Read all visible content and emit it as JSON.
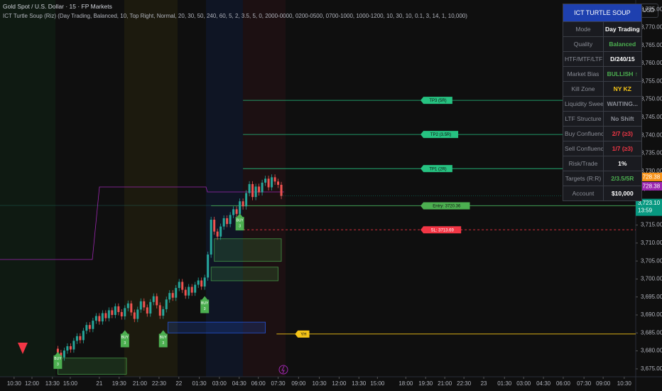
{
  "header": {
    "symbol": "Gold Spot / U.S. Dollar · 15 · FP Markets",
    "indicator": "ICT Turtle Soup (Riz) (Day Trading, Balanced, 10, Top Right, Normal, 20, 30, 50, 240, 60, 5, 2, 3.5, 5, 0, 2000-0000, 0200-0500, 0700-1000, 1000-1200, 10, 30, 10, 0.1, 3, 14, 1, 10,000)",
    "currency": "USD"
  },
  "chart_data": {
    "type": "candlestick",
    "up_color": "#26a69a",
    "down_color": "#ef5350",
    "grid": false,
    "xlim": [
      0,
      198
    ],
    "ylim": [
      3672.8,
      3777.6
    ],
    "xticks": [
      {
        "value": 3.3,
        "label": "10:30"
      },
      {
        "value": 8.9,
        "label": "12:00"
      },
      {
        "value": 15.3,
        "label": "13:30"
      },
      {
        "value": 20.9,
        "label": "15:00"
      },
      {
        "value": 30,
        "label": "21"
      },
      {
        "value": 36.2,
        "label": "19:30"
      },
      {
        "value": 42.7,
        "label": "21:00"
      },
      {
        "value": 48.7,
        "label": "22:30"
      },
      {
        "value": 54.9,
        "label": "22"
      },
      {
        "value": 61.3,
        "label": "01:30"
      },
      {
        "value": 67.6,
        "label": "03:00"
      },
      {
        "value": 73.8,
        "label": "04:30"
      },
      {
        "value": 79.8,
        "label": "06:00"
      },
      {
        "value": 86,
        "label": "07:30"
      },
      {
        "value": 92.4,
        "label": "09:00"
      },
      {
        "value": 98.9,
        "label": "10:30"
      },
      {
        "value": 105.1,
        "label": "12:00"
      },
      {
        "value": 111.3,
        "label": "13:30"
      },
      {
        "value": 117.1,
        "label": "15:00"
      },
      {
        "value": 126,
        "label": "18:00"
      },
      {
        "value": 132.2,
        "label": "19:30"
      },
      {
        "value": 138.2,
        "label": "21:00"
      },
      {
        "value": 144.2,
        "label": "22:30"
      },
      {
        "value": 150.4,
        "label": "23"
      },
      {
        "value": 156.9,
        "label": "01:30"
      },
      {
        "value": 162.9,
        "label": "03:00"
      },
      {
        "value": 169.1,
        "label": "04:30"
      },
      {
        "value": 175.3,
        "label": "06:00"
      },
      {
        "value": 181.8,
        "label": "07:30"
      },
      {
        "value": 187.8,
        "label": "09:00"
      },
      {
        "value": 194.4,
        "label": "10:30"
      }
    ],
    "yticks": [
      {
        "value": 3775,
        "label": "3,775.00"
      },
      {
        "value": 3770,
        "label": "3,770.00"
      },
      {
        "value": 3765,
        "label": "3,765.00"
      },
      {
        "value": 3760,
        "label": "3,760.00"
      },
      {
        "value": 3755,
        "label": "3,755.00"
      },
      {
        "value": 3750,
        "label": "3,750.00"
      },
      {
        "value": 3745,
        "label": "3,745.00"
      },
      {
        "value": 3740,
        "label": "3,740.00"
      },
      {
        "value": 3735,
        "label": "3,735.00"
      },
      {
        "value": 3730,
        "label": "3,730.00"
      },
      {
        "value": 3725,
        "label": "3,725.00"
      },
      {
        "value": 3720,
        "label": "3,720.00"
      },
      {
        "value": 3715,
        "label": "3,715.00"
      },
      {
        "value": 3710,
        "label": "3,710.00"
      },
      {
        "value": 3705,
        "label": "3,705.00"
      },
      {
        "value": 3700,
        "label": "3,700.00"
      },
      {
        "value": 3695,
        "label": "3,695.00"
      },
      {
        "value": 3690,
        "label": "3,690.00"
      },
      {
        "value": 3685,
        "label": "3,685.00"
      },
      {
        "value": 3680,
        "label": "3,680.00"
      },
      {
        "value": 3675,
        "label": "3,675.00"
      }
    ],
    "x": [
      17,
      18,
      19,
      20,
      21,
      22,
      23,
      24,
      25,
      26,
      27,
      28,
      29,
      30,
      31,
      32,
      33,
      34,
      35,
      36,
      37,
      38,
      39,
      40,
      41,
      42,
      43,
      44,
      45,
      46,
      47,
      48,
      49,
      50,
      51,
      52,
      53,
      54,
      55,
      56,
      57,
      58,
      59,
      60,
      61,
      62,
      63,
      64,
      65,
      66,
      67,
      68,
      69,
      70,
      71,
      72,
      73,
      74,
      75,
      76,
      77,
      78,
      79,
      80,
      81,
      82,
      83,
      84,
      85,
      86,
      87
    ],
    "open": [
      3680.6,
      3679.5,
      3678.2,
      3680.1,
      3681.3,
      3680.4,
      3682.8,
      3684.1,
      3683.0,
      3685.6,
      3687.2,
      3686.1,
      3688.4,
      3689.7,
      3688.2,
      3690.5,
      3689.1,
      3691.3,
      3690.0,
      3692.4,
      3690.8,
      3689.6,
      3691.9,
      3693.2,
      3690.7,
      3688.9,
      3691.5,
      3693.8,
      3692.1,
      3690.4,
      3693.6,
      3695.2,
      3692.7,
      3689.8,
      3691.6,
      3694.3,
      3696.1,
      3694.8,
      3697.5,
      3699.2,
      3697.0,
      3695.4,
      3697.8,
      3696.2,
      3698.4,
      3699.6,
      3697.9,
      3700.4,
      3706.8,
      3716.5,
      3713.2,
      3711.8,
      3714.6,
      3716.9,
      3715.3,
      3717.8,
      3719.4,
      3718.1,
      3721.6,
      3720.2,
      3723.9,
      3726.4,
      3722.8,
      3725.7,
      3724.1,
      3726.8,
      3727.9,
      3725.5,
      3728.3,
      3727.1,
      3726.2
    ],
    "high": [
      3681.4,
      3680.3,
      3680.9,
      3682.1,
      3682.1,
      3683.6,
      3684.9,
      3684.9,
      3686.4,
      3688.0,
      3688.0,
      3689.2,
      3690.5,
      3690.5,
      3691.3,
      3691.3,
      3692.1,
      3692.1,
      3693.2,
      3693.2,
      3691.6,
      3692.7,
      3694.0,
      3694.0,
      3691.5,
      3692.3,
      3694.6,
      3694.6,
      3692.9,
      3694.4,
      3696.0,
      3696.0,
      3693.5,
      3692.4,
      3695.1,
      3696.9,
      3696.9,
      3698.3,
      3700.0,
      3700.0,
      3697.8,
      3698.6,
      3698.6,
      3699.2,
      3700.4,
      3700.4,
      3701.2,
      3707.6,
      3717.3,
      3717.3,
      3714.0,
      3715.4,
      3717.7,
      3717.7,
      3718.6,
      3720.2,
      3720.2,
      3722.4,
      3722.4,
      3724.7,
      3727.2,
      3727.2,
      3726.5,
      3726.5,
      3727.6,
      3728.7,
      3728.7,
      3729.1,
      3729.1,
      3727.9,
      3727.0
    ],
    "low": [
      3678.6,
      3677.3,
      3677.3,
      3679.2,
      3679.5,
      3679.5,
      3681.9,
      3682.1,
      3682.1,
      3684.7,
      3685.2,
      3685.2,
      3687.5,
      3687.3,
      3687.3,
      3688.2,
      3688.2,
      3689.1,
      3689.1,
      3689.9,
      3688.7,
      3688.7,
      3691.0,
      3689.8,
      3688.0,
      3688.0,
      3690.6,
      3691.2,
      3689.5,
      3689.5,
      3692.7,
      3691.8,
      3688.9,
      3688.9,
      3690.7,
      3693.4,
      3693.9,
      3693.9,
      3696.6,
      3696.1,
      3694.5,
      3694.5,
      3695.3,
      3695.3,
      3697.5,
      3697.0,
      3697.0,
      3699.5,
      3705.9,
      3712.3,
      3710.9,
      3710.9,
      3713.7,
      3714.4,
      3714.4,
      3716.9,
      3717.2,
      3717.2,
      3719.3,
      3719.3,
      3723.0,
      3721.9,
      3721.9,
      3723.2,
      3723.2,
      3725.9,
      3724.6,
      3724.6,
      3726.2,
      3725.3,
      3722.2
    ],
    "close": [
      3679.5,
      3678.2,
      3680.1,
      3681.3,
      3680.4,
      3682.8,
      3684.1,
      3683.0,
      3685.6,
      3687.2,
      3686.1,
      3688.4,
      3689.7,
      3688.2,
      3690.5,
      3689.1,
      3691.3,
      3690.0,
      3692.4,
      3690.8,
      3689.6,
      3691.9,
      3693.2,
      3690.7,
      3688.9,
      3691.5,
      3693.8,
      3692.1,
      3690.4,
      3693.6,
      3695.2,
      3692.7,
      3689.8,
      3691.6,
      3694.3,
      3696.1,
      3694.8,
      3697.5,
      3699.2,
      3697.0,
      3695.4,
      3697.8,
      3696.2,
      3698.4,
      3699.6,
      3697.9,
      3700.4,
      3706.8,
      3716.5,
      3713.2,
      3711.8,
      3714.6,
      3716.9,
      3715.3,
      3717.8,
      3719.4,
      3718.1,
      3721.6,
      3720.2,
      3723.9,
      3726.4,
      3722.8,
      3725.7,
      3724.1,
      3726.8,
      3727.9,
      3725.5,
      3728.3,
      3727.1,
      3726.2,
      3723.1
    ],
    "zones": [
      {
        "x0": 66,
        "x1": 87,
        "low": 3704.9,
        "high": 3711.2,
        "color": "#4caf50"
      },
      {
        "x0": 65,
        "x1": 86,
        "low": 3699.5,
        "high": 3703.3,
        "color": "#4caf50"
      },
      {
        "x0": 51.5,
        "x1": 82,
        "low": 3685.0,
        "high": 3688.0,
        "color": "#2962ff"
      },
      {
        "x0": 17,
        "x1": 38.5,
        "low": 3673.5,
        "high": 3678.0,
        "color": "#4caf50"
      }
    ],
    "levels": [
      {
        "label": "TP3 (5R)",
        "value": 3749.7,
        "start": 75,
        "color": "#26c281",
        "style": "solid"
      },
      {
        "label": "TP2 (3.5R)",
        "value": 3740.2,
        "start": 75,
        "color": "#26c281",
        "style": "solid"
      },
      {
        "label": "TP1 (2R)",
        "value": 3730.7,
        "start": 75,
        "color": "#26c281",
        "style": "solid"
      },
      {
        "label": "Entry: 3720.36",
        "value": 3720.36,
        "start": 65,
        "color": "#4caf50",
        "style": "solid"
      },
      {
        "label": "SL: 3713.69",
        "value": 3713.69,
        "start": 75,
        "color": "#f23645",
        "style": "dashed"
      },
      {
        "label": "YH",
        "value": 3684.7,
        "start": 85.5,
        "color": "#f5c518",
        "style": "solid"
      }
    ],
    "label_x": 131.5,
    "signals": [
      {
        "x": 17,
        "price": 3675.0,
        "label": "BUY",
        "count": "3"
      },
      {
        "x": 38,
        "price": 3681.0,
        "label": "BUY",
        "count": "3"
      },
      {
        "x": 50,
        "price": 3681.0,
        "label": "BUY",
        "count": "3"
      },
      {
        "x": 63,
        "price": 3690.5,
        "label": "BUY",
        "count": "3"
      },
      {
        "x": 74,
        "price": 3713.5,
        "label": "BUY",
        "count": "3"
      }
    ],
    "sell_markers": [
      {
        "x": 6,
        "price": 3680.7,
        "color": "#f23645"
      }
    ],
    "price_tags": [
      {
        "value": 3728.38,
        "label": "3,728.38",
        "color": "#f7931a"
      },
      {
        "value": 3728.38,
        "label": "3,728.38",
        "color": "#9c27b0"
      }
    ],
    "last_price": {
      "value": 3723.1,
      "label": "3,723.10",
      "countdown": "13:59",
      "color": "#089981"
    }
  },
  "table": {
    "title": "ICT TURTLE SOUP",
    "rows": [
      [
        "Mode",
        "Day Trading"
      ],
      [
        "Quality",
        "Balanced"
      ],
      [
        "HTF/MTF/LTF",
        "D/240/15"
      ],
      [
        "Market Bias",
        "BULLISH ↑"
      ],
      [
        "Kill Zone",
        "NY KZ"
      ],
      [
        "Liquidity Sweep",
        "WAITING..."
      ],
      [
        "LTF Structure",
        "No Shift"
      ],
      [
        "Buy Confluence",
        "2/7 (≥3)"
      ],
      [
        "Sell Confluence",
        "1/7 (≥3)"
      ],
      [
        "Risk/Trade",
        "1%"
      ],
      [
        "Targets (R:R)",
        "2/3.5/5R"
      ],
      [
        "Account",
        "$10,000"
      ]
    ],
    "value_colors": [
      "#ffffff",
      "#4caf50",
      "#ffffff",
      "#4caf50",
      "#f5c518",
      "#8a8d96",
      "#8a8d96",
      "#f23645",
      "#f23645",
      "#ffffff",
      "#4caf50",
      "#ffffff"
    ]
  }
}
